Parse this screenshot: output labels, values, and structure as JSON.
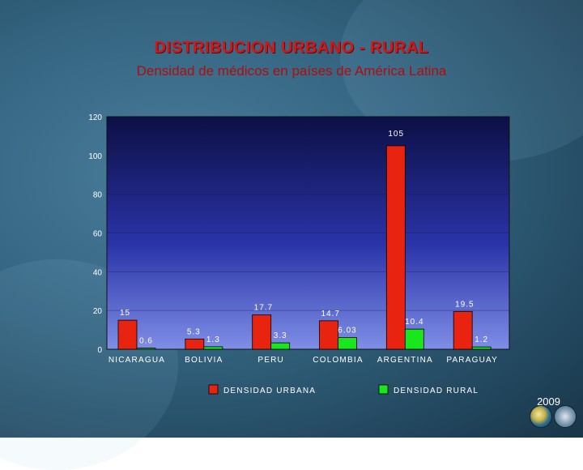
{
  "header": {
    "title": "DISTRIBUCION URBANO - RURAL",
    "subtitle": "Densidad de médicos en países de América Latina"
  },
  "footer": {
    "year": "2009"
  },
  "colors": {
    "urban": "#e8230f",
    "rural": "#19e61c"
  },
  "chart_data": {
    "type": "bar",
    "categories": [
      "NICARAGUA",
      "BOLIVIA",
      "PERU",
      "COLOMBIA",
      "ARGENTINA",
      "PARAGUAY"
    ],
    "series": [
      {
        "name": "DENSIDAD URBANA",
        "values": [
          15,
          5.3,
          17.7,
          14.7,
          105,
          19.5
        ],
        "labels": [
          "15",
          "5.3",
          "17.7",
          "14.7",
          "105",
          "19.5"
        ]
      },
      {
        "name": "DENSIDAD RURAL",
        "values": [
          0.6,
          1.3,
          3.3,
          6.03,
          10.4,
          1.2
        ],
        "labels": [
          "0.6",
          "1.3",
          "3.3",
          "6.03",
          "10.4",
          "1.2"
        ]
      }
    ],
    "yticks": [
      "0",
      "20",
      "40",
      "60",
      "80",
      "100",
      "120"
    ],
    "ylim": [
      0,
      120
    ],
    "title": "DISTRIBUCION URBANO - RURAL",
    "subtitle": "Densidad de médicos en países de América Latina",
    "xlabel": "",
    "ylabel": "",
    "legend": "bottom"
  }
}
